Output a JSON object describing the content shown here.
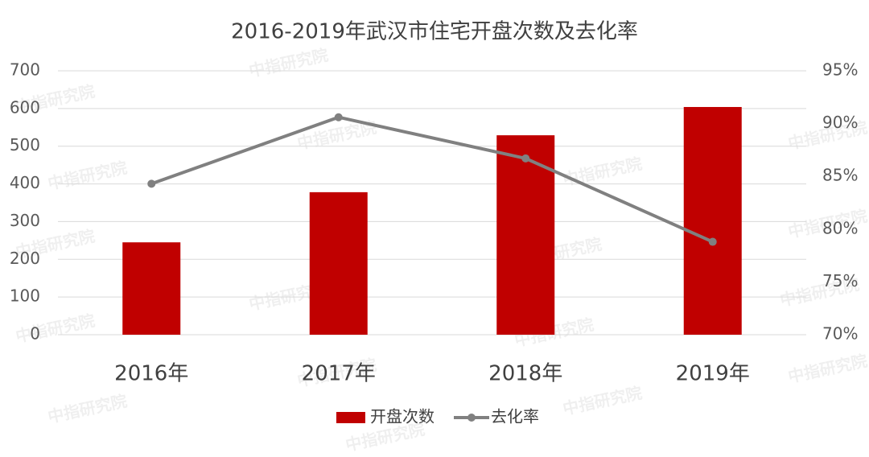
{
  "chart_data": {
    "type": "bar",
    "title": "2016-2019年武汉市住宅开盘次数及去化率",
    "watermark": "中指研究院",
    "categories": [
      "2016年",
      "2017年",
      "2018年",
      "2019年"
    ],
    "series": [
      {
        "name": "开盘次数",
        "type": "bar",
        "color": "#c00000",
        "values": [
          245,
          378,
          529,
          604
        ]
      },
      {
        "name": "去化率",
        "type": "line",
        "axis": "y2",
        "color": "#808080",
        "values": [
          84.3,
          90.6,
          86.7,
          78.8
        ]
      }
    ],
    "ylim": [
      0,
      700
    ],
    "yticks": [
      0,
      100,
      200,
      300,
      400,
      500,
      600,
      700
    ],
    "y2lim": [
      70,
      95
    ],
    "y2ticks": [
      {
        "value": 70,
        "label": "70%"
      },
      {
        "value": 75,
        "label": "75%"
      },
      {
        "value": 80,
        "label": "80%"
      },
      {
        "value": 85,
        "label": "85%"
      },
      {
        "value": 90,
        "label": "90%"
      },
      {
        "value": 95,
        "label": "95%"
      }
    ],
    "grid": true,
    "legend": "bottom"
  }
}
